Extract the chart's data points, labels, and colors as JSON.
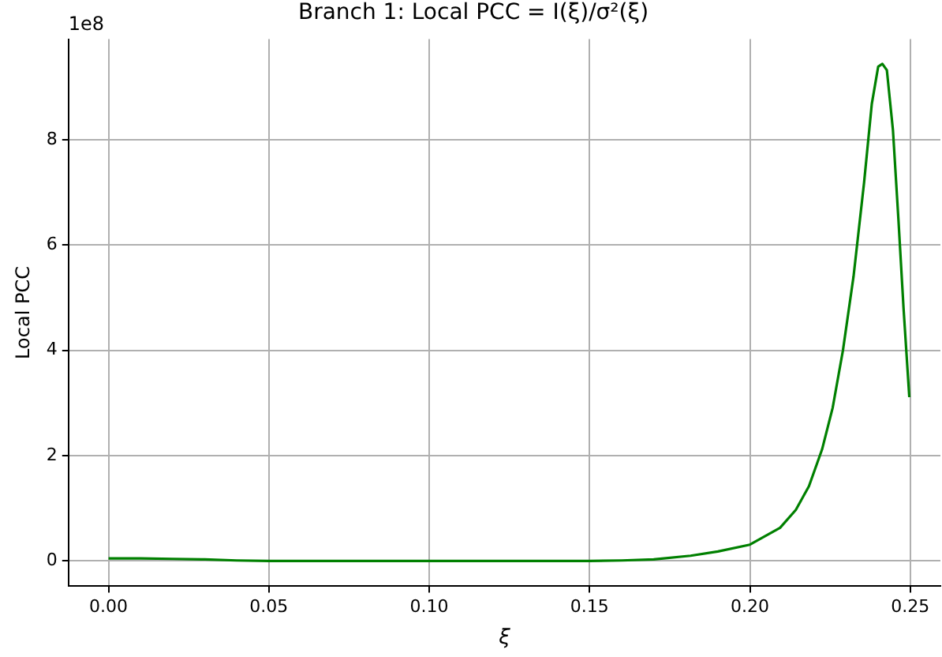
{
  "chart_data": {
    "type": "line",
    "title": "Branch 1: Local PCC = I(ξ)/σ²(ξ)",
    "xlabel": "ξ",
    "ylabel": "Local PCC",
    "annotations": [
      "1e8"
    ],
    "x": [
      0,
      0.01,
      0.02,
      0.03,
      0.04,
      0.05,
      0.08,
      0.1,
      0.12,
      0.15,
      0.16,
      0.17,
      0.1815,
      0.19,
      0.2,
      0.2094,
      0.2143,
      0.2184,
      0.2225,
      0.2258,
      0.229,
      0.2323,
      0.2356,
      0.238,
      0.24,
      0.2413,
      0.2427,
      0.2446,
      0.2463,
      0.2479,
      0.2497
    ],
    "series": [
      {
        "color": "#008000",
        "values": [
          0.05,
          0.05,
          0.04,
          0.03,
          0.01,
          0,
          0,
          0,
          0,
          0,
          0.01,
          0.03,
          0.1,
          0.18,
          0.31,
          0.63,
          0.97,
          1.42,
          2.12,
          2.91,
          4.0,
          5.4,
          7.19,
          8.68,
          9.39,
          9.44,
          9.32,
          8.18,
          6.49,
          4.8,
          3.11
        ]
      }
    ],
    "xlim": [
      -0.0125,
      0.2594
    ],
    "ylim": [
      -0.48,
      9.91
    ],
    "xticks": [
      {
        "value": 0,
        "label": "0.00"
      },
      {
        "value": 0.05,
        "label": "0.05"
      },
      {
        "value": 0.1,
        "label": "0.10"
      },
      {
        "value": 0.15,
        "label": "0.15"
      },
      {
        "value": 0.2,
        "label": "0.20"
      },
      {
        "value": 0.25,
        "label": "0.25"
      }
    ],
    "yticks": [
      0,
      2,
      4,
      6,
      8
    ],
    "grid": true,
    "marker": "none",
    "line_style": "solid"
  }
}
